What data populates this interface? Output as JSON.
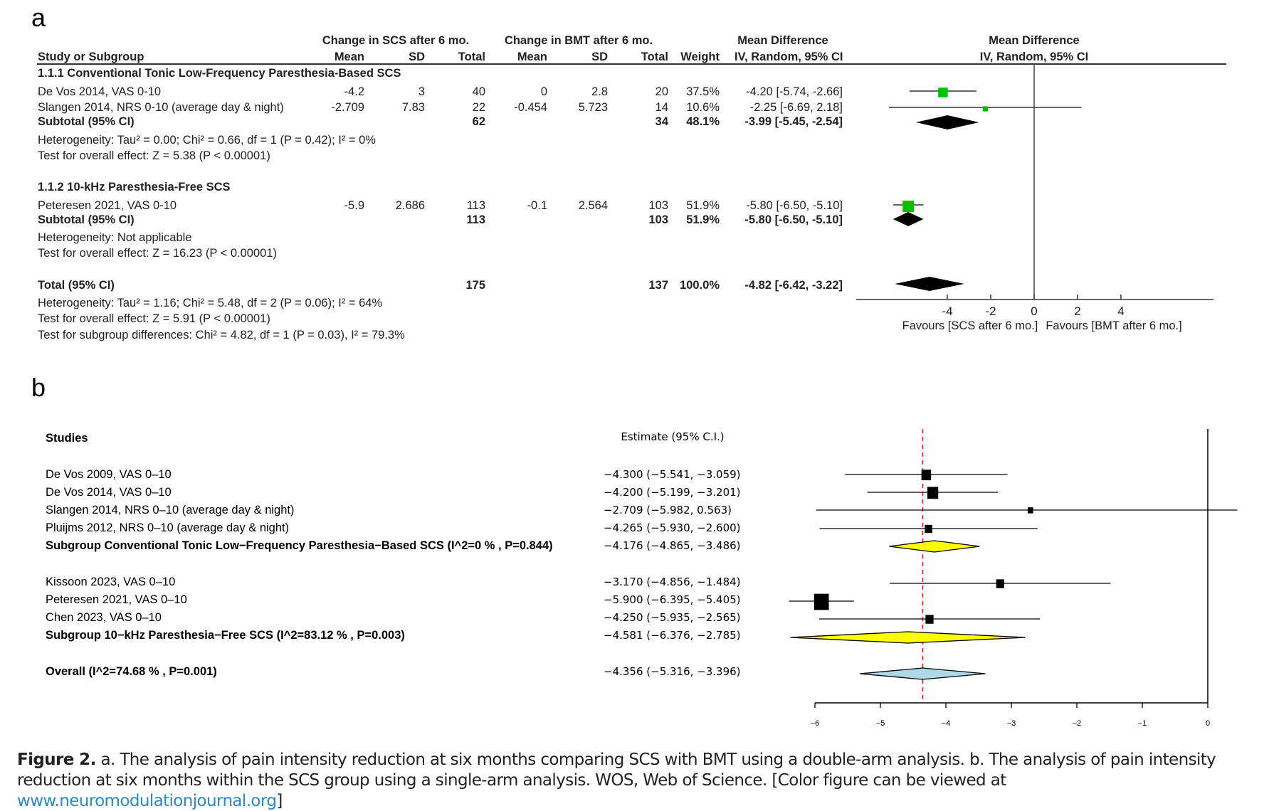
{
  "panel_a": {
    "letter": "a",
    "headers": {
      "scs_group": "Change in SCS after 6 mo.",
      "bmt_group": "Change in BMT after 6 mo.",
      "md_group": "Mean Difference",
      "md_plot_group": "Mean Difference",
      "study": "Study or Subgroup",
      "scs_mean": "Mean",
      "scs_sd": "SD",
      "scs_total": "Total",
      "bmt_mean": "Mean",
      "bmt_sd": "SD",
      "bmt_total": "Total",
      "weight": "Weight",
      "md_method": "IV, Random, 95% CI",
      "md_plot_method": "IV, Random, 95% CI"
    },
    "rows": [
      {
        "type": "subgroup",
        "label": "1.1.1 Conventional Tonic Low-Frequency Paresthesia-Based SCS"
      },
      {
        "type": "study",
        "label": "De Vos 2014, VAS 0-10",
        "scs_mean": "-4.2",
        "scs_sd": "3",
        "scs_total": "40",
        "bmt_mean": "0",
        "bmt_sd": "2.8",
        "bmt_total": "20",
        "weight": "37.5%",
        "md": "-4.20 [-5.74, -2.66]"
      },
      {
        "type": "study",
        "label": "Slangen 2014, NRS 0-10 (average day & night)",
        "scs_mean": "-2.709",
        "scs_sd": "7.83",
        "scs_total": "22",
        "bmt_mean": "-0.454",
        "bmt_sd": "5.723",
        "bmt_total": "14",
        "weight": "10.6%",
        "md": "-2.25 [-6.69, 2.18]"
      },
      {
        "type": "subtotal",
        "label": "Subtotal (95% CI)",
        "scs_total": "62",
        "bmt_total": "34",
        "weight": "48.1%",
        "md": "-3.99 [-5.45, -2.54]"
      },
      {
        "type": "note",
        "label": "Heterogeneity: Tau² = 0.00; Chi² = 0.66, df = 1 (P = 0.42); I² = 0%"
      },
      {
        "type": "note",
        "label": "Test for overall effect: Z = 5.38 (P < 0.00001)"
      },
      {
        "type": "subgroup",
        "label": "1.1.2 10-kHz Paresthesia-Free SCS"
      },
      {
        "type": "study",
        "label": "Peteresen 2021, VAS 0-10",
        "scs_mean": "-5.9",
        "scs_sd": "2.686",
        "scs_total": "113",
        "bmt_mean": "-0.1",
        "bmt_sd": "2.564",
        "bmt_total": "103",
        "weight": "51.9%",
        "md": "-5.80 [-6.50, -5.10]"
      },
      {
        "type": "subtotal",
        "label": "Subtotal (95% CI)",
        "scs_total": "113",
        "bmt_total": "103",
        "weight": "51.9%",
        "md": "-5.80 [-6.50, -5.10]"
      },
      {
        "type": "note",
        "label": "Heterogeneity: Not applicable"
      },
      {
        "type": "note",
        "label": "Test for overall effect: Z = 16.23 (P < 0.00001)"
      },
      {
        "type": "subtotal",
        "label": "Total (95% CI)",
        "scs_total": "175",
        "bmt_total": "137",
        "weight": "100.0%",
        "md": "-4.82 [-6.42, -3.22]"
      },
      {
        "type": "note",
        "label": "Heterogeneity: Tau² = 1.16; Chi² = 5.48, df = 2 (P = 0.06); I² = 64%"
      },
      {
        "type": "note",
        "label": "Test for overall effect: Z = 5.91 (P < 0.00001)"
      },
      {
        "type": "note",
        "label": "Test for subgroup differences: Chi² = 4.82, df = 1 (P = 0.03), I² = 79.3%"
      }
    ],
    "favours_left": "Favours [SCS after 6 mo.]",
    "favours_right": "Favours [BMT after 6 mo.]",
    "colors": {
      "study_marker": "#00c000",
      "summary_marker": "#000000",
      "lines": "#333333"
    }
  },
  "panel_b": {
    "letter": "b",
    "studies_header": "Studies",
    "estimate_header": "Estimate (95% C.I.)",
    "rows": [
      {
        "type": "study",
        "label": "De Vos 2009, VAS 0–10",
        "estimate": "−4.300 (−5.541, −3.059)"
      },
      {
        "type": "study",
        "label": "De Vos 2014, VAS 0–10",
        "estimate": "−4.200 (−5.199, −3.201)"
      },
      {
        "type": "study",
        "label": "Slangen 2014, NRS 0–10 (average day & night)",
        "estimate": "−2.709 (−5.982,  0.563)"
      },
      {
        "type": "study",
        "label": "Pluijms 2012, NRS 0–10 (average day & night)",
        "estimate": "−4.265 (−5.930, −2.600)"
      },
      {
        "type": "subgroup",
        "label": "Subgroup Conventional Tonic Low−Frequency Paresthesia−Based SCS (I^2=0 % , P=0.844)",
        "estimate": "−4.176 (−4.865, −3.486)"
      },
      {
        "type": "study",
        "label": "Kissoon 2023, VAS 0–10",
        "estimate": "−3.170 (−4.856, −1.484)"
      },
      {
        "type": "study",
        "label": "Peteresen 2021, VAS 0–10",
        "estimate": "−5.900 (−6.395, −5.405)"
      },
      {
        "type": "study",
        "label": "Chen 2023, VAS 0–10",
        "estimate": "−4.250 (−5.935, −2.565)"
      },
      {
        "type": "subgroup",
        "label": "Subgroup 10−kHz Paresthesia−Free SCS (I^2=83.12 % , P=0.003)",
        "estimate": "−4.581 (−6.376, −2.785)"
      },
      {
        "type": "overall",
        "label": "Overall (I^2=74.68 % , P=0.001)",
        "estimate": "−4.356 (−5.316, −3.396)"
      }
    ],
    "colors": {
      "study_marker": "#000000",
      "subgroup_diamond": "#ffff00",
      "overall_diamond": "#add8e6",
      "reference_line": "#ff0000"
    }
  },
  "caption": {
    "lead": "Figure 2.",
    "text": " a. The analysis of pain intensity reduction at six months comparing SCS with BMT using a double-arm analysis. b. The analysis of pain intensity reduction at six months within the SCS group using a single-arm analysis. WOS, Web of Science. [Color figure can be viewed at ",
    "link": "www.neuromodulationjournal.org",
    "tail": "]"
  },
  "chart_data": [
    {
      "type": "forest",
      "title": "Mean Difference IV, Random, 95% CI",
      "xlabel": "Favours [SCS after 6 mo.]  |  Favours [BMT after 6 mo.]",
      "xlim": [
        -8.5,
        8.5
      ],
      "xticks": [
        -4,
        -2,
        0,
        2,
        4
      ],
      "reference_line": 0,
      "points": [
        {
          "label": "De Vos 2014, VAS 0-10",
          "kind": "study",
          "est": -4.2,
          "lo": -5.74,
          "hi": -2.66,
          "weight": 37.5
        },
        {
          "label": "Slangen 2014, NRS 0-10 (average day & night)",
          "kind": "study",
          "est": -2.25,
          "lo": -6.69,
          "hi": 2.18,
          "weight": 10.6
        },
        {
          "label": "Subtotal 1.1.1",
          "kind": "summary",
          "est": -3.99,
          "lo": -5.45,
          "hi": -2.54
        },
        {
          "label": "Peteresen 2021, VAS 0-10",
          "kind": "study",
          "est": -5.8,
          "lo": -6.5,
          "hi": -5.1,
          "weight": 51.9
        },
        {
          "label": "Subtotal 1.1.2",
          "kind": "summary",
          "est": -5.8,
          "lo": -6.5,
          "hi": -5.1
        },
        {
          "label": "Total (95% CI)",
          "kind": "summary",
          "est": -4.82,
          "lo": -6.42,
          "hi": -3.22
        }
      ]
    },
    {
      "type": "forest",
      "title": "Estimate (95% C.I.)",
      "xlim": [
        -6.5,
        0.5
      ],
      "xticks": [
        -6,
        -5,
        -4,
        -3,
        -2,
        -1,
        0
      ],
      "xtick_labels": [
        "−6",
        "−5",
        "−4",
        "−3",
        "−2",
        "−1",
        "0"
      ],
      "reference_line": 0,
      "pooled_line": -4.356,
      "points": [
        {
          "label": "De Vos 2009, VAS 0–10",
          "kind": "study",
          "est": -4.3,
          "lo": -5.541,
          "hi": -3.059,
          "size": 3
        },
        {
          "label": "De Vos 2014, VAS 0–10",
          "kind": "study",
          "est": -4.2,
          "lo": -5.199,
          "hi": -3.201,
          "size": 3.4
        },
        {
          "label": "Slangen 2014, NRS 0–10 (average day & night)",
          "kind": "study",
          "est": -2.709,
          "lo": -5.982,
          "hi": 0.563,
          "size": 1.7
        },
        {
          "label": "Pluijms 2012, NRS 0–10 (average day & night)",
          "kind": "study",
          "est": -4.265,
          "lo": -5.93,
          "hi": -2.6,
          "size": 2.3
        },
        {
          "label": "Subgroup Conventional Tonic",
          "kind": "subgroup",
          "est": -4.176,
          "lo": -4.865,
          "hi": -3.486
        },
        {
          "label": "Kissoon 2023, VAS 0–10",
          "kind": "study",
          "est": -3.17,
          "lo": -4.856,
          "hi": -1.484,
          "size": 2.5
        },
        {
          "label": "Peteresen 2021, VAS 0–10",
          "kind": "study",
          "est": -5.9,
          "lo": -6.395,
          "hi": -5.405,
          "size": 4.6
        },
        {
          "label": "Chen 2023, VAS 0–10",
          "kind": "study",
          "est": -4.25,
          "lo": -5.935,
          "hi": -2.565,
          "size": 2.5
        },
        {
          "label": "Subgroup 10-kHz",
          "kind": "subgroup",
          "est": -4.581,
          "lo": -6.376,
          "hi": -2.785
        },
        {
          "label": "Overall",
          "kind": "overall",
          "est": -4.356,
          "lo": -5.316,
          "hi": -3.396
        }
      ]
    }
  ]
}
